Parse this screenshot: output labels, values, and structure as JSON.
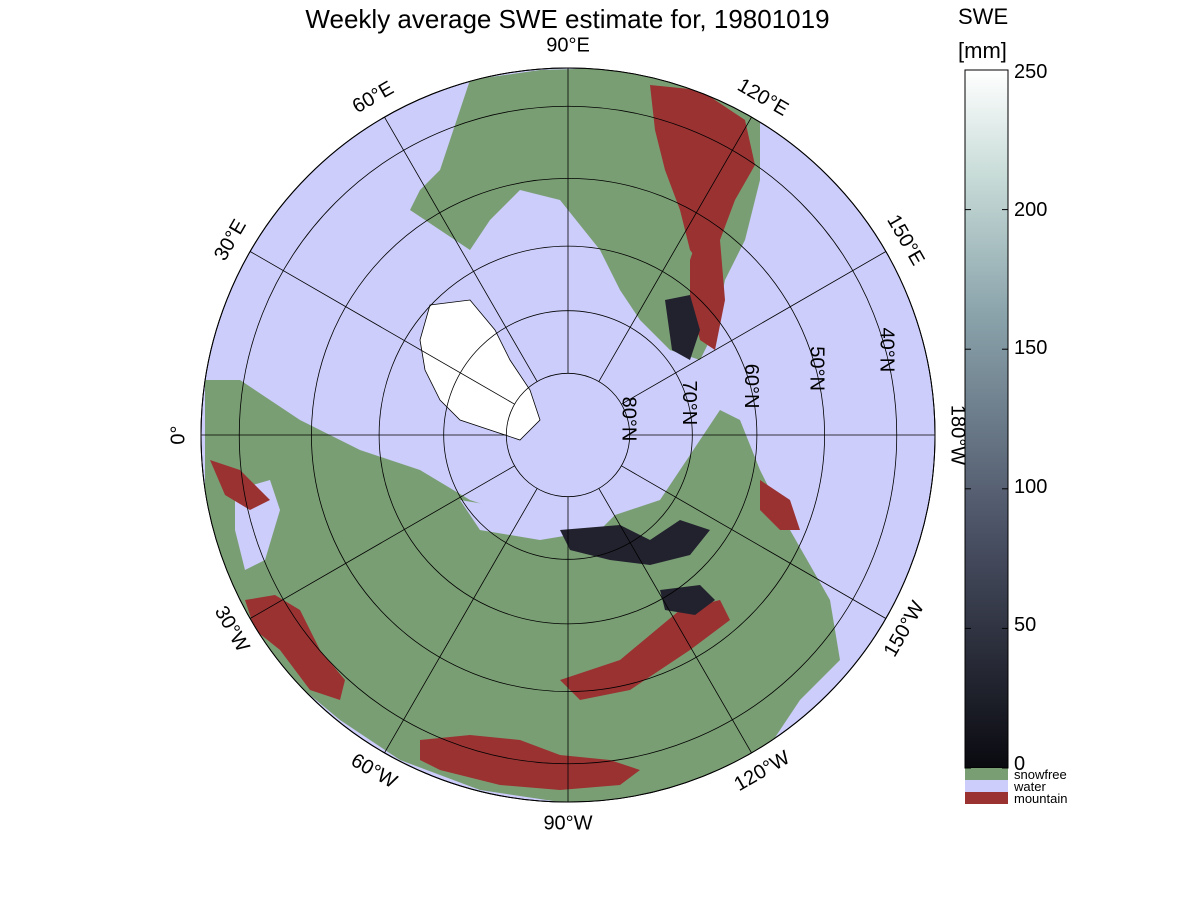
{
  "title": "Weekly average SWE estimate for, 19801019",
  "colorbar": {
    "title_line1": "SWE",
    "title_line2": "[mm]",
    "ticks": [
      "250",
      "200",
      "150",
      "100",
      "50",
      "0"
    ],
    "tick_values": [
      250,
      200,
      150,
      100,
      50,
      0
    ],
    "min": 0,
    "max": 250,
    "categories": [
      {
        "label": "snowfree",
        "color": "#7a9e74"
      },
      {
        "label": "water",
        "color": "#cccdfb"
      },
      {
        "label": "mountain",
        "color": "#9a3232"
      }
    ],
    "gradient_low": "#0a0a10",
    "gradient_mid": "#6d7d92",
    "gradient_high": "#ffffff"
  },
  "map": {
    "projection": "north polar stereographic",
    "longitude_labels": [
      {
        "text": "90°W",
        "lon": -90
      },
      {
        "text": "120°W",
        "lon": -120
      },
      {
        "text": "150°W",
        "lon": -150
      },
      {
        "text": "180°W",
        "lon": 180
      },
      {
        "text": "150°E",
        "lon": 150
      },
      {
        "text": "120°E",
        "lon": 120
      },
      {
        "text": "90°E",
        "lon": 90
      },
      {
        "text": "60°E",
        "lon": 60
      },
      {
        "text": "30°E",
        "lon": 30
      },
      {
        "text": "0°",
        "lon": 0
      },
      {
        "text": "30°W",
        "lon": -30
      },
      {
        "text": "60°W",
        "lon": -60
      }
    ],
    "latitude_labels": [
      {
        "text": "80°N",
        "lat": 80
      },
      {
        "text": "70°N",
        "lat": 70
      },
      {
        "text": "60°N",
        "lat": 60
      },
      {
        "text": "50°N",
        "lat": 50
      },
      {
        "text": "40°N",
        "lat": 40
      }
    ],
    "colors": {
      "water": "#cccdfb",
      "land": "#7a9e74",
      "mountain": "#9a3232",
      "snow": "#22222e",
      "ice": "#ccccfa"
    }
  }
}
